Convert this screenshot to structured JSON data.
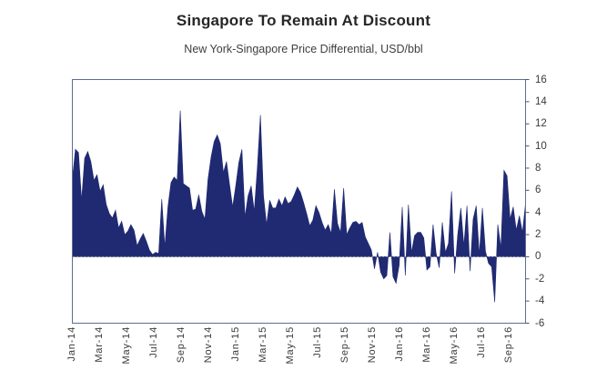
{
  "title": "Singapore To Remain At Discount",
  "subtitle": "New York-Singapore Price Differential, USD/bbl",
  "chart_data": {
    "type": "area",
    "series_name": "New York-Singapore price differential",
    "unit": "USD/bbl",
    "title": "Singapore To Remain At Discount",
    "subtitle": "New York-Singapore Price Differential, USD/bbl",
    "x_tick_labels": [
      "Jan-14",
      "Mar-14",
      "May-14",
      "Jul-14",
      "Sep-14",
      "Nov-14",
      "Jan-15",
      "Mar-15",
      "May-15",
      "Jul-15",
      "Sep-15",
      "Nov-15",
      "Jan-16",
      "Mar-16",
      "May-16",
      "Jul-16",
      "Sep-16"
    ],
    "y_tick_labels": [
      16,
      14,
      12,
      10,
      8,
      6,
      4,
      2,
      0,
      -2,
      -4,
      -6
    ],
    "ylim": [
      -6,
      16
    ],
    "grid": false,
    "legend": "none",
    "zero_line_style": "dotted",
    "fill_color": "#202a72",
    "axis_color": "#5b6e94",
    "tick_color": "#555555",
    "zero_line_color": "#9a9a9a",
    "values": [
      7.0,
      9.7,
      9.4,
      5.1,
      8.9,
      9.5,
      8.6,
      6.9,
      7.4,
      5.9,
      6.5,
      4.7,
      3.9,
      3.5,
      4.2,
      2.6,
      3.2,
      2.0,
      2.3,
      2.9,
      2.4,
      1.0,
      1.6,
      2.1,
      1.4,
      0.6,
      0.2,
      0.4,
      0.3,
      5.2,
      0.9,
      4.5,
      6.7,
      7.2,
      6.9,
      13.2,
      6.6,
      6.4,
      6.2,
      4.2,
      4.3,
      5.6,
      4.1,
      3.4,
      7.0,
      9.0,
      10.4,
      11.0,
      10.2,
      7.6,
      8.6,
      6.5,
      4.5,
      6.4,
      8.5,
      9.7,
      3.6,
      5.5,
      6.4,
      4.1,
      8.0,
      12.8,
      5.5,
      2.9,
      5.1,
      4.4,
      4.4,
      5.2,
      4.6,
      5.4,
      4.8,
      5.0,
      5.6,
      6.3,
      5.8,
      4.9,
      3.9,
      2.8,
      3.3,
      4.6,
      4.0,
      3.1,
      2.4,
      2.9,
      2.1,
      6.1,
      3.0,
      2.2,
      6.2,
      2.0,
      2.6,
      3.1,
      3.2,
      2.9,
      3.1,
      1.8,
      1.2,
      0.6,
      -1.1,
      0.4,
      -1.4,
      -2.0,
      -1.7,
      2.2,
      -1.8,
      -2.4,
      -0.8,
      4.5,
      -1.7,
      4.7,
      0.4,
      1.9,
      2.2,
      2.2,
      1.7,
      -1.2,
      -0.9,
      2.9,
      0.3,
      -1.0,
      3.1,
      0.4,
      1.2,
      5.9,
      -1.5,
      2.0,
      4.4,
      1.0,
      4.6,
      -1.3,
      3.4,
      4.6,
      0.2,
      4.4,
      0.5,
      -0.6,
      -0.9,
      -4.1,
      2.9,
      0.8,
      7.8,
      7.3,
      3.4,
      4.5,
      2.4,
      3.7,
      2.2,
      4.8
    ]
  }
}
